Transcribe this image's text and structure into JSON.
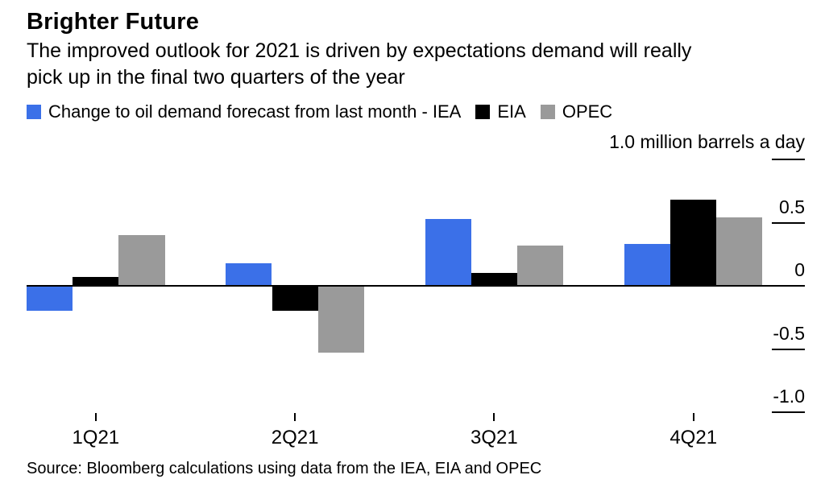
{
  "header": {
    "title": "Brighter Future",
    "subtitle_lines": [
      "The improved outlook for 2021 is driven by expectations demand will really",
      "pick up in the final two quarters of the year"
    ]
  },
  "legend": {
    "items": [
      {
        "label": "Change to oil demand forecast from last month - IEA",
        "color": "#3B70E8"
      },
      {
        "label": "EIA",
        "color": "#000000"
      },
      {
        "label": "OPEC",
        "color": "#9A9A9A"
      }
    ]
  },
  "chart_data": {
    "type": "bar",
    "title": "Brighter Future",
    "subtitle": "The improved outlook for 2021 is driven by expectations demand will really pick up in the final two quarters of the year",
    "categories": [
      "1Q21",
      "2Q21",
      "3Q21",
      "4Q21"
    ],
    "series": [
      {
        "name": "IEA",
        "color": "#3B70E8",
        "values": [
          -0.2,
          0.18,
          0.53,
          0.33
        ]
      },
      {
        "name": "EIA",
        "color": "#000000",
        "values": [
          0.07,
          -0.2,
          0.1,
          0.68
        ]
      },
      {
        "name": "OPEC",
        "color": "#9A9A9A",
        "values": [
          0.4,
          -0.53,
          0.32,
          0.54
        ]
      }
    ],
    "unit_label": "1.0 million barrels a day",
    "y_axis": {
      "side": "right",
      "range": [
        -1.0,
        1.0
      ],
      "ticks": [
        {
          "value": 1.0,
          "label": ""
        },
        {
          "value": 0.5,
          "label": "0.5"
        },
        {
          "value": 0,
          "label": "0"
        },
        {
          "value": -0.5,
          "label": "-0.5"
        },
        {
          "value": -1.0,
          "label": "-1.0"
        }
      ]
    },
    "grid": "off",
    "legend_position": "top"
  },
  "footer": {
    "source": "Source: Bloomberg calculations using data from the IEA, EIA and OPEC"
  }
}
